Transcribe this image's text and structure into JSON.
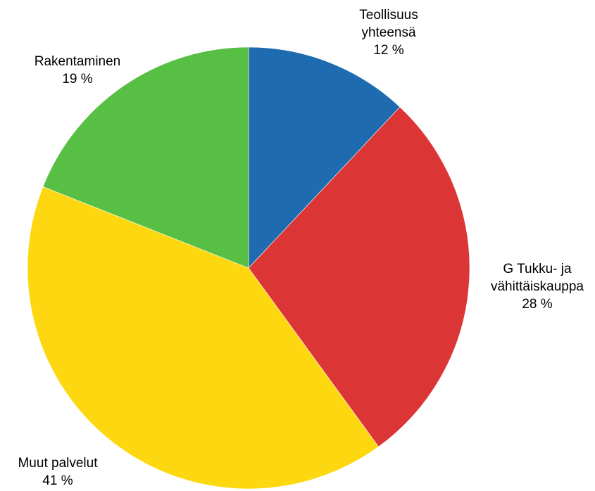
{
  "chart_data": {
    "type": "pie",
    "slices": [
      {
        "label_lines": [
          "Teollisuus",
          "yhteensä"
        ],
        "value": 12,
        "value_label": "12 %",
        "color": "#1F6BB0"
      },
      {
        "label_lines": [
          "G Tukku- ja",
          "vähittäiskauppa"
        ],
        "value": 28,
        "value_label": "28 %",
        "color": "#DC3535"
      },
      {
        "label_lines": [
          "Muut palvelut"
        ],
        "value": 41,
        "value_label": "41 %",
        "color": "#FDD811"
      },
      {
        "label_lines": [
          "Rakentaminen"
        ],
        "value": 19,
        "value_label": "19 %",
        "color": "#56BF44"
      }
    ],
    "start_angle": "12 o'clock",
    "direction": "clockwise",
    "legend": "none"
  }
}
